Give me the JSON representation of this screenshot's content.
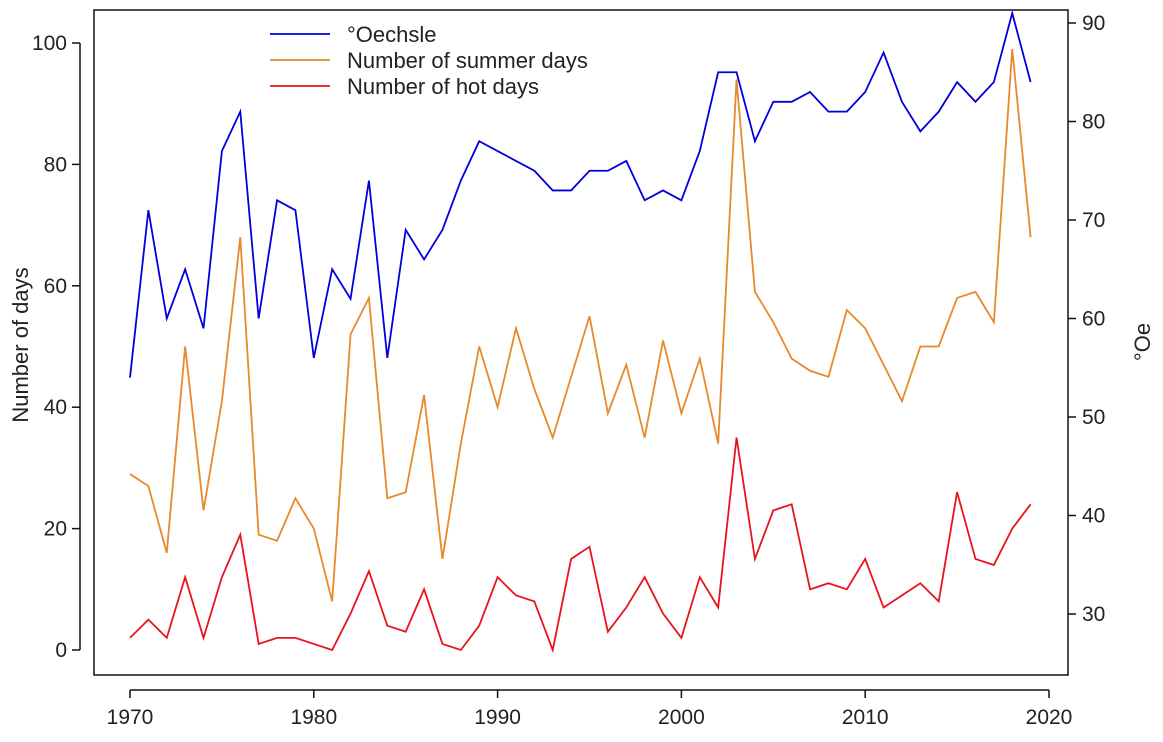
{
  "chart_data": {
    "type": "line",
    "title": "",
    "xlabel": "",
    "ylabel": "Number of days",
    "y2label": "°Oe",
    "xlim": [
      1968,
      2021
    ],
    "ylim": [
      -4,
      106
    ],
    "y2lim": [
      23.8,
      91.3
    ],
    "xticks": [
      1970,
      1980,
      1990,
      2000,
      2010,
      2020
    ],
    "yticks": [
      0,
      20,
      40,
      60,
      80,
      100
    ],
    "y2ticks": [
      30,
      40,
      50,
      60,
      70,
      80,
      90
    ],
    "grid": false,
    "legend_position": "top-left",
    "x": [
      1970,
      1971,
      1972,
      1973,
      1974,
      1975,
      1976,
      1977,
      1978,
      1979,
      1980,
      1981,
      1982,
      1983,
      1984,
      1985,
      1986,
      1987,
      1988,
      1989,
      1990,
      1991,
      1992,
      1993,
      1994,
      1995,
      1996,
      1997,
      1998,
      1999,
      2000,
      2001,
      2002,
      2003,
      2004,
      2005,
      2006,
      2007,
      2008,
      2009,
      2010,
      2011,
      2012,
      2013,
      2014,
      2015,
      2016,
      2017,
      2018,
      2019
    ],
    "series": [
      {
        "name": "°Oechsle",
        "axis": "right",
        "color": "#0000dd",
        "values": [
          54,
          71,
          60,
          65,
          59,
          77,
          81,
          60,
          72,
          71,
          56,
          65,
          62,
          74,
          56,
          69,
          66,
          69,
          74,
          78,
          77,
          76,
          75,
          73,
          73,
          75,
          75,
          76,
          72,
          73,
          72,
          77,
          85,
          85,
          78,
          82,
          82,
          83,
          81,
          81,
          83,
          87,
          82,
          79,
          81,
          84,
          82,
          84,
          91,
          84
        ]
      },
      {
        "name": "Number of summer days",
        "axis": "left",
        "color": "#e8892a",
        "values": [
          29,
          27,
          16,
          50,
          23,
          41,
          68,
          19,
          18,
          25,
          20,
          8,
          52,
          58,
          25,
          26,
          42,
          15,
          34,
          50,
          40,
          53,
          43,
          35,
          45,
          55,
          39,
          47,
          35,
          51,
          39,
          48,
          34,
          94,
          59,
          54,
          48,
          46,
          45,
          56,
          53,
          47,
          41,
          50,
          50,
          58,
          59,
          54,
          99,
          68
        ]
      },
      {
        "name": "Number of hot days",
        "axis": "left",
        "color": "#e8141c",
        "values": [
          2,
          5,
          2,
          12,
          2,
          12,
          19,
          1,
          2,
          2,
          1,
          0,
          6,
          13,
          4,
          3,
          10,
          1,
          0,
          4,
          12,
          9,
          8,
          0,
          15,
          17,
          3,
          7,
          12,
          6,
          2,
          12,
          7,
          35,
          15,
          23,
          24,
          10,
          11,
          10,
          15,
          7,
          9,
          11,
          8,
          26,
          15,
          14,
          20,
          24
        ]
      }
    ]
  }
}
